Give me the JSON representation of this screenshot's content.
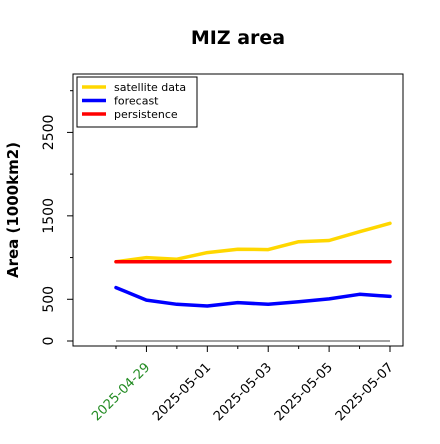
{
  "chart_data": {
    "type": "line",
    "title": "MIZ area",
    "xlabel": "",
    "ylabel": "Area (1000km2)",
    "x": [
      "2025-04-28",
      "2025-04-29",
      "2025-04-30",
      "2025-05-01",
      "2025-05-02",
      "2025-05-03",
      "2025-05-04",
      "2025-05-05",
      "2025-05-06",
      "2025-05-07"
    ],
    "xticks": [
      "2025-04-29",
      "2025-05-01",
      "2025-05-03",
      "2025-05-05",
      "2025-05-07"
    ],
    "xtick_colors": [
      "#228b22",
      "#000000",
      "#000000",
      "#000000",
      "#000000"
    ],
    "yticks": [
      0,
      500,
      1500,
      2500
    ],
    "ylim": [
      -60,
      3200
    ],
    "grid": false,
    "legend_position": "top-left",
    "series": [
      {
        "name": "satellite data",
        "color": "#ffd700",
        "values": [
          950,
          1000,
          980,
          1060,
          1100,
          1095,
          1190,
          1205,
          1310,
          1410
        ]
      },
      {
        "name": "forecast",
        "color": "#0000ff",
        "values": [
          640,
          490,
          440,
          420,
          460,
          440,
          470,
          505,
          560,
          535
        ]
      },
      {
        "name": "persistence",
        "color": "#ff0000",
        "values": [
          950,
          950,
          950,
          950,
          950,
          950,
          950,
          950,
          950,
          950
        ]
      }
    ],
    "baseline": {
      "value": 0,
      "color": "#808080"
    }
  }
}
